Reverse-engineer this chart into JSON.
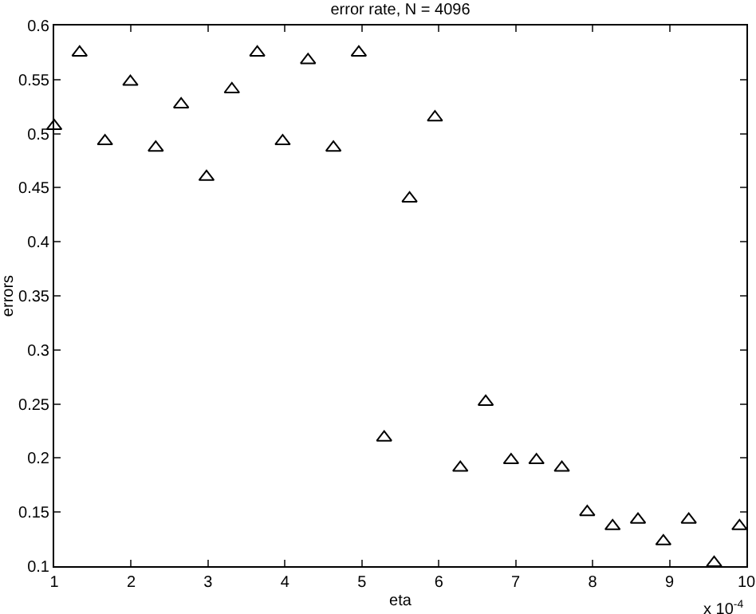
{
  "chart_data": {
    "type": "scatter",
    "title": "error rate, N = 4096",
    "xlabel": "eta",
    "ylabel": "errors",
    "annotations": [
      "x 10$^{-4}$"
    ],
    "x": [
      1,
      1.33,
      1.66,
      1.99,
      2.32,
      2.65,
      2.98,
      3.31,
      3.64,
      3.97,
      4.3,
      4.63,
      4.96,
      5.29,
      5.62,
      5.95,
      6.28,
      6.61,
      6.94,
      7.27,
      7.6,
      7.93,
      8.26,
      8.59,
      8.92,
      9.25,
      9.58,
      9.91
    ],
    "series": [
      {
        "color": "#000000",
        "values": [
          0.507,
          0.575,
          0.493,
          0.548,
          0.487,
          0.527,
          0.46,
          0.541,
          0.575,
          0.493,
          0.568,
          0.487,
          0.575,
          0.219,
          0.44,
          0.515,
          0.191,
          0.252,
          0.198,
          0.198,
          0.191,
          0.15,
          0.137,
          0.143,
          0.123,
          0.143,
          0.103,
          0.137
        ]
      }
    ],
    "marker": "triangle",
    "grid": false,
    "legend": false,
    "xlim": [
      1,
      10
    ],
    "xticks": [
      1,
      2,
      3,
      4,
      5,
      6,
      7,
      8,
      9,
      10
    ],
    "ylim": [
      0.1,
      0.6
    ],
    "yticks": [
      0.1,
      0.15,
      0.2,
      0.25,
      0.3,
      0.35,
      0.4,
      0.45,
      0.5,
      0.55,
      0.6
    ]
  }
}
